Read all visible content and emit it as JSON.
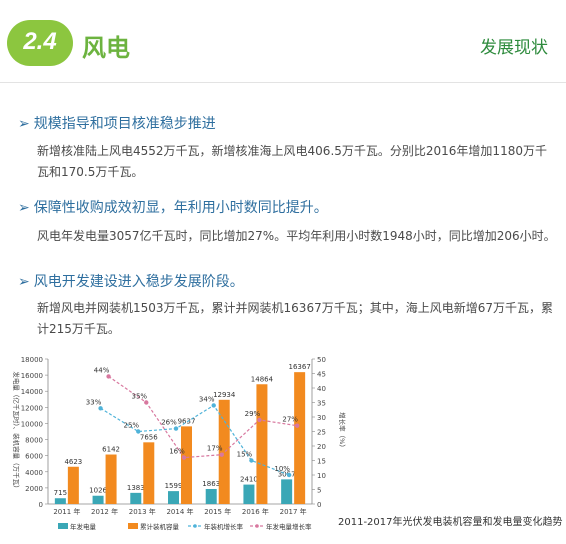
{
  "header": {
    "number": "2.4",
    "title": "风电",
    "right_label": "发展现状"
  },
  "sections": [
    {
      "heading": "规模指导和项目核准稳步推进",
      "lines": [
        "新增核准陆上风电4552万千瓦，新增核准海上风电406.5万千瓦。分别比2016年增加1180万千",
        "瓦和170.5万千瓦。"
      ]
    },
    {
      "heading": "保障性收购成效初显，年利用小时数同比提升。",
      "lines": [
        "风电年发电量3057亿千瓦时，同比增加27%。平均年利用小时数1948小时，同比增加206小时。"
      ]
    },
    {
      "heading": "风电开发建设进入稳步发展阶段。",
      "lines": [
        "新增风电并网装机1503万千瓦，累计并网装机16367万千瓦；其中，海上风电新增67万千瓦，累",
        "计215万千瓦。"
      ]
    }
  ],
  "chart_caption": "2011-2017年光伏发电装机容量和发电量变化趋势",
  "chart_data": {
    "type": "bar",
    "categories": [
      "2011 年",
      "2012 年",
      "2013 年",
      "2014 年",
      "2015 年",
      "2016 年",
      "2017 年"
    ],
    "y_left_label": "发电量（亿千瓦时）、装机容量（万千瓦）",
    "y_right_label": "增长率（%）",
    "y_left_ticks": [
      "0",
      "2000",
      "4000",
      "6000",
      "8000",
      "10000",
      "12000",
      "14000",
      "16000",
      "18000"
    ],
    "y_right_ticks": [
      "0",
      "5",
      "10",
      "15",
      "20",
      "25",
      "30",
      "35",
      "40",
      "45",
      "50"
    ],
    "ylim_left": [
      0,
      18000
    ],
    "ylim_right": [
      0,
      50
    ],
    "series": [
      {
        "name": "年发电量",
        "type": "bar",
        "color": "#3aa7b6",
        "values": [
          715,
          1026,
          1383,
          1599,
          1863,
          2410,
          3057
        ],
        "labels": [
          "715",
          "1026",
          "1383",
          "1599",
          "1863",
          "2410",
          "3057"
        ]
      },
      {
        "name": "累计装机容量",
        "type": "bar",
        "color": "#f28a1f",
        "values": [
          4623,
          6142,
          7656,
          9637,
          12934,
          14864,
          16367
        ],
        "labels": [
          "4623",
          "6142",
          "7656",
          "9637",
          "12934",
          "14864",
          "16367"
        ]
      },
      {
        "name": "年装机增长率",
        "type": "line",
        "color": "#4fb3d9",
        "values": [
          null,
          33,
          25,
          26,
          34,
          15,
          10
        ],
        "labels": [
          "",
          "33%",
          "25%",
          "26%",
          "34%",
          "15%",
          "10%"
        ]
      },
      {
        "name": "年发电量增长率",
        "type": "line",
        "color": "#d8789f",
        "values": [
          null,
          44,
          35,
          16,
          17,
          29,
          27
        ],
        "labels": [
          "",
          "44%",
          "35%",
          "16%",
          "17%",
          "29%",
          "27%"
        ]
      }
    ],
    "legend_position": "bottom",
    "grid": false
  }
}
